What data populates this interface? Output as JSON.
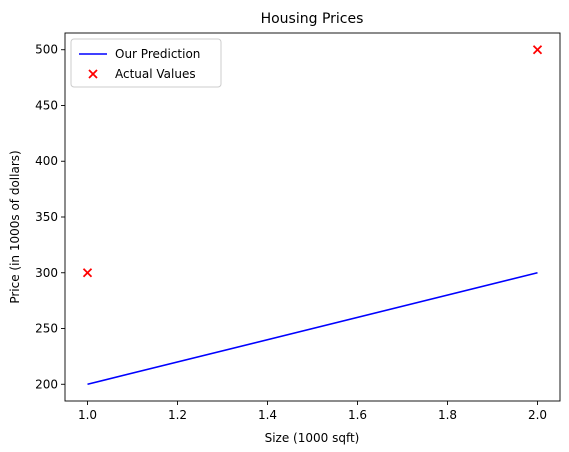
{
  "chart_data": {
    "type": "line",
    "title": "Housing Prices",
    "xlabel": "Size (1000 sqft)",
    "ylabel": "Price (in 1000s of dollars)",
    "xlim": [
      0.95,
      2.05
    ],
    "ylim": [
      185,
      515
    ],
    "xticks": [
      1.0,
      1.2,
      1.4,
      1.6,
      1.8,
      2.0
    ],
    "xtick_labels": [
      "1.0",
      "1.2",
      "1.4",
      "1.6",
      "1.8",
      "2.0"
    ],
    "yticks": [
      200,
      250,
      300,
      350,
      400,
      450,
      500
    ],
    "ytick_labels": [
      "200",
      "250",
      "300",
      "350",
      "400",
      "450",
      "500"
    ],
    "grid": false,
    "legend_position": "top-left",
    "series": [
      {
        "name": "Our Prediction",
        "kind": "line",
        "color": "#0000ff",
        "x": [
          1.0,
          2.0
        ],
        "y": [
          200,
          300
        ]
      },
      {
        "name": "Actual Values",
        "kind": "scatter",
        "marker": "x",
        "color": "#ff0000",
        "x": [
          1.0,
          2.0
        ],
        "y": [
          300,
          500
        ]
      }
    ]
  }
}
